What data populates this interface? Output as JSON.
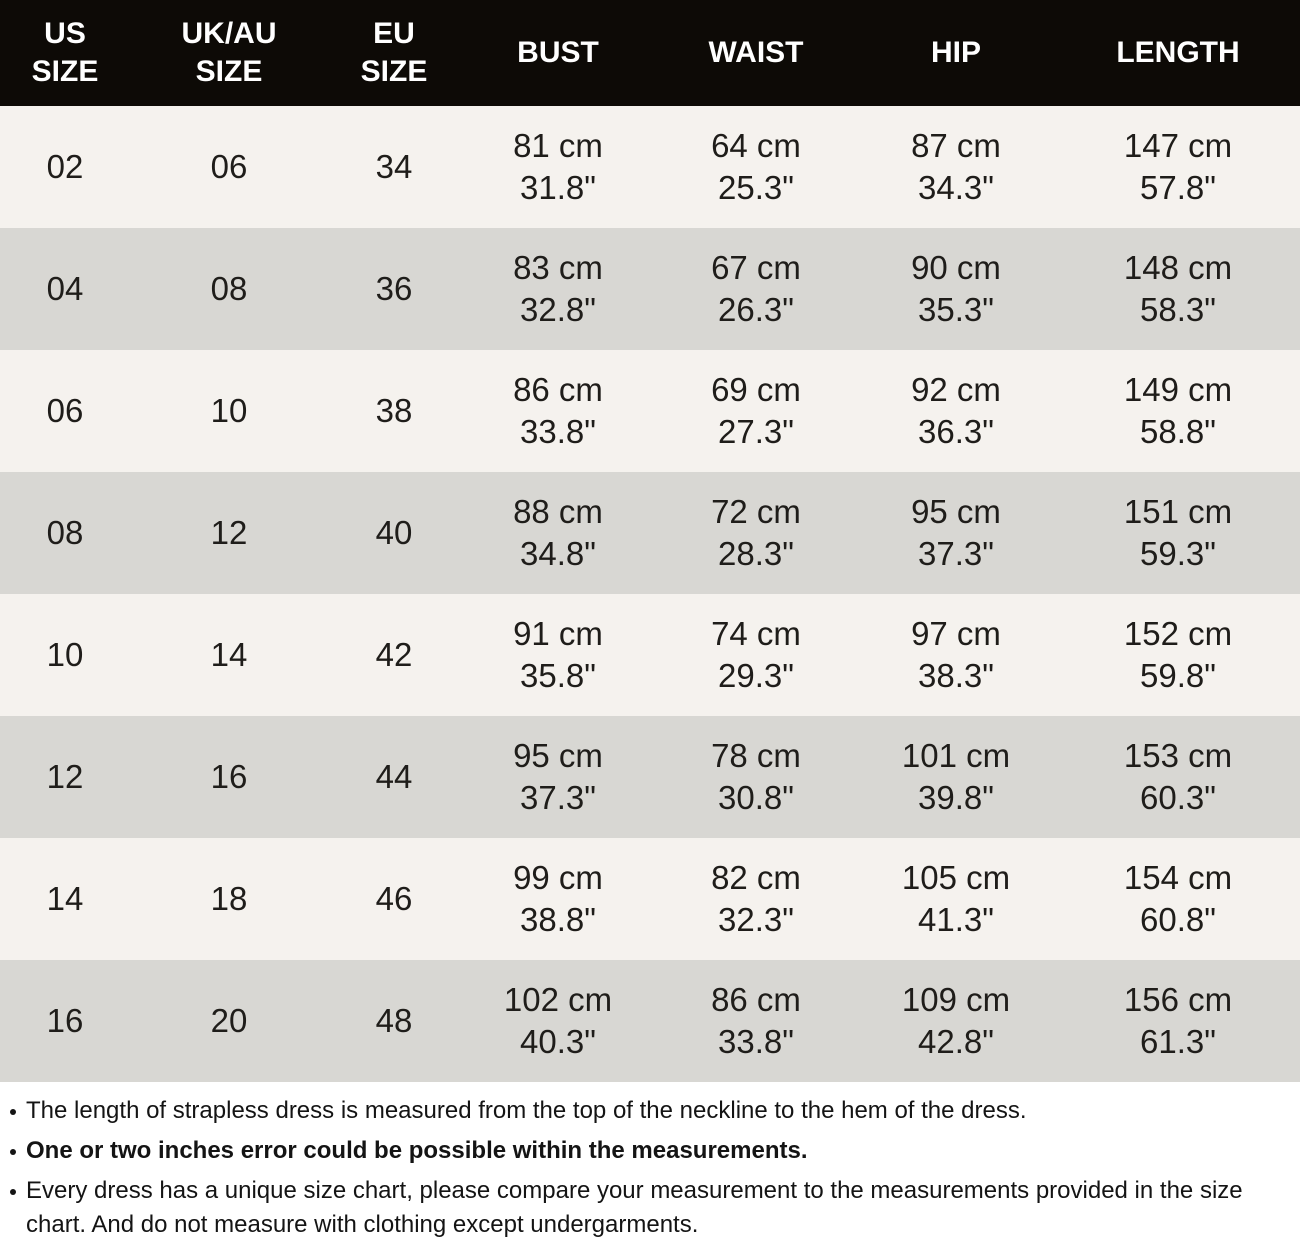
{
  "size_chart": {
    "headers": [
      {
        "id": "us",
        "label": "US SIZE",
        "lines": [
          "US",
          "SIZE"
        ]
      },
      {
        "id": "uk-au",
        "label": "UK/AU SIZE",
        "lines": [
          "UK/AU",
          "SIZE"
        ]
      },
      {
        "id": "eu",
        "label": "EU SIZE",
        "lines": [
          "EU",
          "SIZE"
        ]
      },
      {
        "id": "bust",
        "label": "BUST",
        "lines": [
          "BUST"
        ]
      },
      {
        "id": "waist",
        "label": "WAIST",
        "lines": [
          "WAIST"
        ]
      },
      {
        "id": "hip",
        "label": "HIP",
        "lines": [
          "HIP"
        ]
      },
      {
        "id": "length",
        "label": "LENGTH",
        "lines": [
          "LENGTH"
        ]
      }
    ],
    "rows": [
      {
        "us": "02",
        "uk_au": "06",
        "eu": "34",
        "bust": [
          "81 cm",
          "31.8\""
        ],
        "waist": [
          "64 cm",
          "25.3\""
        ],
        "hip": [
          "87 cm",
          "34.3\""
        ],
        "length": [
          "147 cm",
          "57.8\""
        ]
      },
      {
        "us": "04",
        "uk_au": "08",
        "eu": "36",
        "bust": [
          "83 cm",
          "32.8\""
        ],
        "waist": [
          "67 cm",
          "26.3\""
        ],
        "hip": [
          "90 cm",
          "35.3\""
        ],
        "length": [
          "148 cm",
          "58.3\""
        ]
      },
      {
        "us": "06",
        "uk_au": "10",
        "eu": "38",
        "bust": [
          "86 cm",
          "33.8\""
        ],
        "waist": [
          "69 cm",
          "27.3\""
        ],
        "hip": [
          "92 cm",
          "36.3\""
        ],
        "length": [
          "149 cm",
          "58.8\""
        ]
      },
      {
        "us": "08",
        "uk_au": "12",
        "eu": "40",
        "bust": [
          "88 cm",
          "34.8\""
        ],
        "waist": [
          "72 cm",
          "28.3\""
        ],
        "hip": [
          "95 cm",
          "37.3\""
        ],
        "length": [
          "151 cm",
          "59.3\""
        ]
      },
      {
        "us": "10",
        "uk_au": "14",
        "eu": "42",
        "bust": [
          "91 cm",
          "35.8\""
        ],
        "waist": [
          "74 cm",
          "29.3\""
        ],
        "hip": [
          "97 cm",
          "38.3\""
        ],
        "length": [
          "152 cm",
          "59.8\""
        ]
      },
      {
        "us": "12",
        "uk_au": "16",
        "eu": "44",
        "bust": [
          "95 cm",
          "37.3\""
        ],
        "waist": [
          "78 cm",
          "30.8\""
        ],
        "hip": [
          "101 cm",
          "39.8\""
        ],
        "length": [
          "153 cm",
          "60.3\""
        ]
      },
      {
        "us": "14",
        "uk_au": "18",
        "eu": "46",
        "bust": [
          "99 cm",
          "38.8\""
        ],
        "waist": [
          "82 cm",
          "32.3\""
        ],
        "hip": [
          "105 cm",
          "41.3\""
        ],
        "length": [
          "154 cm",
          "60.8\""
        ]
      },
      {
        "us": "16",
        "uk_au": "20",
        "eu": "48",
        "bust": [
          "102 cm",
          "40.3\""
        ],
        "waist": [
          "86 cm",
          "33.8\""
        ],
        "hip": [
          "109 cm",
          "42.8\""
        ],
        "length": [
          "156 cm",
          "61.3\""
        ]
      }
    ]
  },
  "notes": [
    {
      "text": "The length of strapless dress is measured from the top of the neckline to the hem of the dress.",
      "bold": false
    },
    {
      "text": "One or two inches error could be possible within the measurements.",
      "bold": true
    },
    {
      "text": "Every dress has a unique size chart, please compare your measurement to the measurements provided in the size chart. And do not measure with clothing except undergarments.",
      "bold": false
    }
  ],
  "colors": {
    "header_bg": "#0d0a06",
    "header_text": "#ffffff",
    "row_light": "#f5f2ee",
    "row_dark": "#d8d7d3",
    "cell_text": "#1f1d1a",
    "notes_bg": "#ffffff",
    "notes_text": "#141414"
  }
}
